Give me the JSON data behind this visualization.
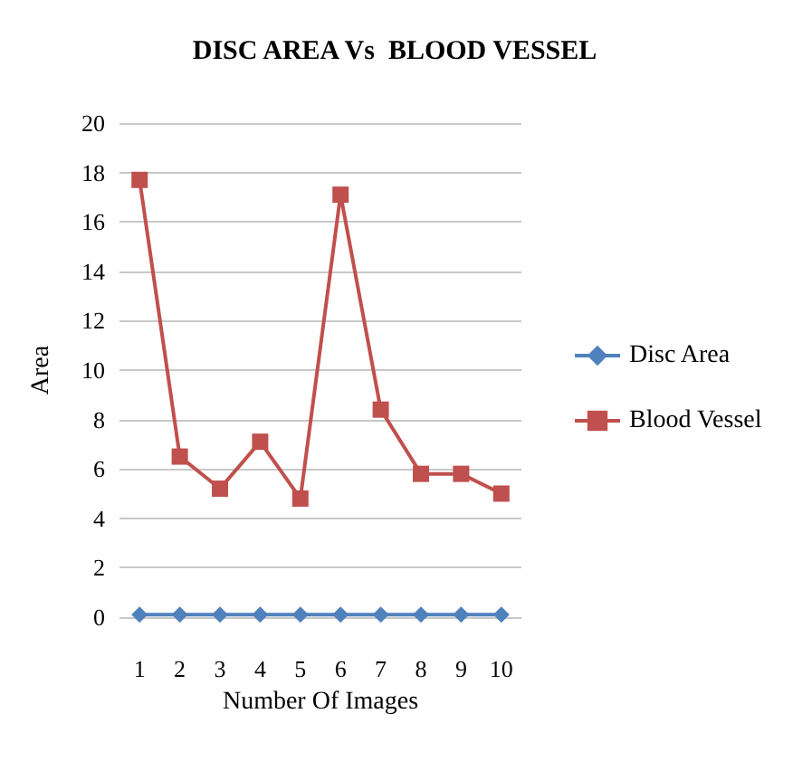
{
  "chart_data": {
    "type": "line",
    "title": "DISC AREA Vs  BLOOD VESSEL",
    "xlabel": "Number Of Images",
    "ylabel": "Area",
    "categories": [
      "1",
      "2",
      "3",
      "4",
      "5",
      "6",
      "7",
      "8",
      "9",
      "10"
    ],
    "series": [
      {
        "name": "Disc Area",
        "color": "#4f81bd",
        "marker": "diamond",
        "values": [
          0.1,
          0.1,
          0.1,
          0.1,
          0.1,
          0.1,
          0.1,
          0.1,
          0.1,
          0.1
        ]
      },
      {
        "name": "Blood Vessel",
        "color": "#c0504d",
        "marker": "square",
        "values": [
          17.7,
          6.5,
          5.2,
          7.1,
          4.8,
          17.1,
          8.4,
          5.8,
          5.8,
          5.0
        ]
      }
    ],
    "ylim": [
      0,
      20
    ],
    "yticks": [
      0,
      2,
      4,
      6,
      8,
      10,
      12,
      14,
      16,
      18,
      20
    ],
    "grid": "y",
    "legend": "right"
  }
}
